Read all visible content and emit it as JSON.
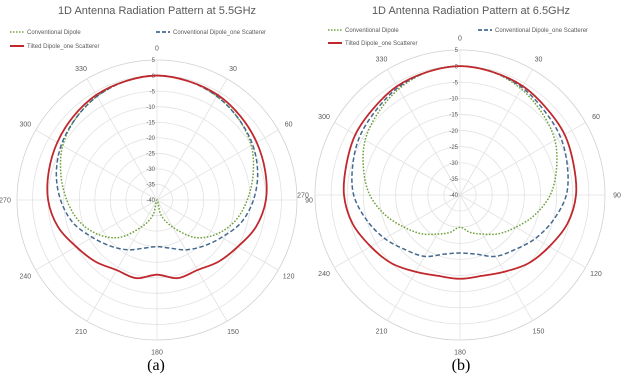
{
  "figure": {
    "captions": [
      "(a)",
      "(b)"
    ]
  },
  "chart_data": [
    {
      "type": "polar-line",
      "title": "1D Antenna Radiation Pattern at 5.5GHz",
      "angular_ticks": [
        "0",
        "30",
        "60",
        "90",
        "120",
        "150",
        "180",
        "210",
        "240",
        "270",
        "300",
        "330"
      ],
      "radial_range": [
        -40,
        5
      ],
      "radial_ticks": [
        "5",
        "0",
        "-5",
        "-10",
        "-15",
        "-20",
        "-25",
        "-30",
        "-35",
        "-40"
      ],
      "grid": true,
      "legend_position": "top",
      "angles_deg": [
        0,
        15,
        30,
        45,
        60,
        75,
        90,
        105,
        120,
        135,
        150,
        165,
        180,
        195,
        210,
        225,
        240,
        255,
        270,
        285,
        300,
        315,
        330,
        345
      ],
      "series": [
        {
          "name": "Conventional Dipole",
          "color": "#70a03c",
          "dash": "dot",
          "values": [
            0,
            -0.5,
            -1.5,
            -3,
            -5,
            -8,
            -11,
            -14,
            -18,
            -23,
            -30,
            -35,
            -40,
            -35,
            -30,
            -23,
            -18,
            -14,
            -11,
            -8,
            -5,
            -3,
            -1.5,
            -0.5
          ]
        },
        {
          "name": "Conventional Dipole_one Scatterer",
          "color": "#44698e",
          "dash": "dash",
          "values": [
            0,
            -0.5,
            -1.5,
            -3,
            -4.5,
            -6.5,
            -9,
            -12,
            -16,
            -19,
            -21.5,
            -24,
            -25,
            -24,
            -21.5,
            -19,
            -16,
            -12,
            -9,
            -6.5,
            -4.5,
            -3,
            -1.5,
            -0.5
          ]
        },
        {
          "name": "Tilted Dipole_one Scatterer",
          "color": "#c0282d",
          "dash": "solid",
          "values": [
            0,
            -0.5,
            -1,
            -2,
            -3,
            -4,
            -5,
            -7,
            -10,
            -12,
            -14,
            -14,
            -16,
            -14,
            -14,
            -12,
            -10,
            -7,
            -5,
            -4,
            -3,
            -2,
            -1,
            -0.5
          ]
        }
      ]
    },
    {
      "type": "polar-line",
      "title": "1D Antenna Radiation Pattern at 6.5GHz",
      "angular_ticks": [
        "0",
        "30",
        "60",
        "90",
        "120",
        "150",
        "180",
        "210",
        "240",
        "270",
        "300",
        "330"
      ],
      "radial_range": [
        -40,
        5
      ],
      "radial_ticks": [
        "5",
        "0",
        "-5",
        "-10",
        "-15",
        "-20",
        "-25",
        "-30",
        "-35",
        "-40"
      ],
      "grid": true,
      "legend_position": "top",
      "angles_deg": [
        0,
        15,
        30,
        45,
        60,
        75,
        90,
        105,
        120,
        135,
        150,
        165,
        180,
        195,
        210,
        225,
        240,
        255,
        270,
        285,
        300,
        315,
        330,
        345
      ],
      "series": [
        {
          "name": "Conventional Dipole",
          "color": "#70a03c",
          "dash": "dot",
          "values": [
            0,
            -0.5,
            -2,
            -4,
            -6,
            -9,
            -12,
            -16,
            -20,
            -23,
            -26,
            -28,
            -30,
            -28,
            -26,
            -23,
            -20,
            -16,
            -12,
            -9,
            -6,
            -4,
            -2,
            -0.5
          ]
        },
        {
          "name": "Conventional Dipole_one Scatterer",
          "color": "#44698e",
          "dash": "dash",
          "values": [
            0,
            -0.5,
            -1.5,
            -3,
            -4,
            -5.5,
            -7,
            -10,
            -13,
            -16,
            -18,
            -21,
            -22,
            -21,
            -18,
            -16,
            -13,
            -10,
            -7,
            -5.5,
            -4,
            -3,
            -1.5,
            -0.5
          ]
        },
        {
          "name": "Tilted Dipole_one Scatterer",
          "color": "#c0282d",
          "dash": "solid",
          "values": [
            0,
            -0.5,
            -1,
            -2,
            -2.5,
            -3.5,
            -4,
            -5.5,
            -8,
            -10,
            -12.5,
            -14,
            -14,
            -14,
            -12.5,
            -10,
            -8,
            -5.5,
            -4,
            -3.5,
            -2.5,
            -2,
            -1,
            -0.5
          ]
        }
      ]
    }
  ]
}
